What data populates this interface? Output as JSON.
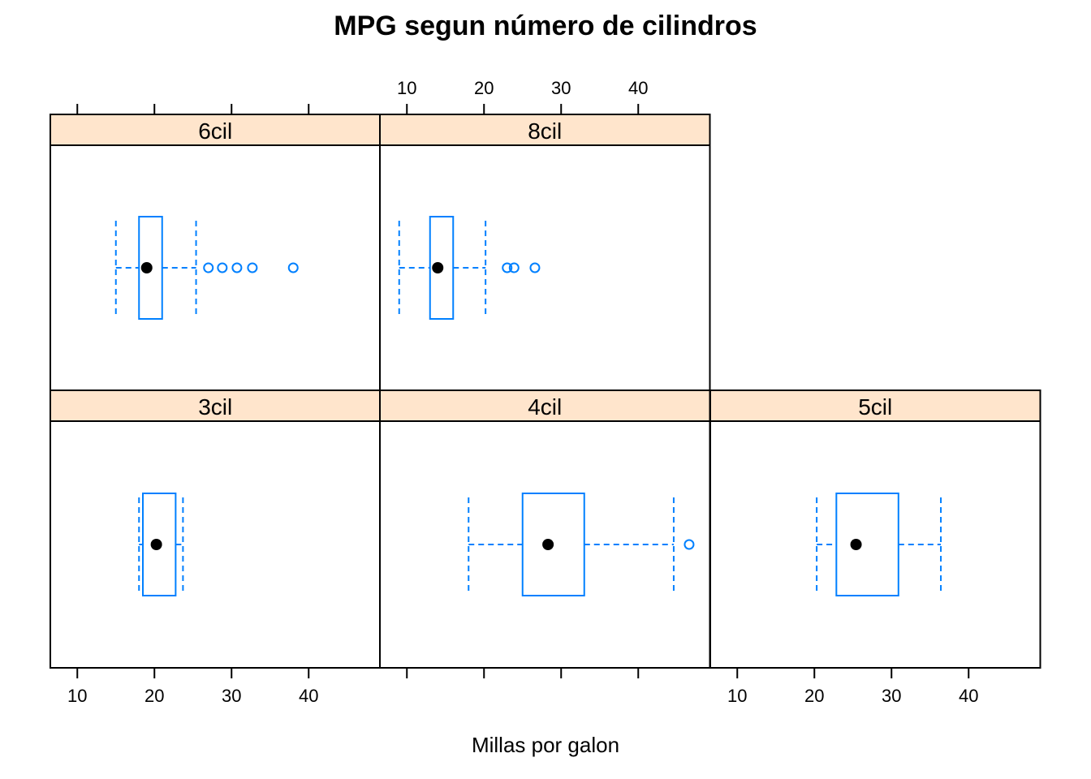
{
  "chart_data": {
    "type": "boxplot",
    "title": "MPG segun número de cilindros",
    "xlabel": "Millas por galon",
    "xlim": [
      6.5,
      49
    ],
    "xticks": [
      10,
      20,
      30,
      40
    ],
    "tick_labels": [
      "10",
      "20",
      "30",
      "40"
    ],
    "layout": "3 columns x 2 rows, panels filled bottom-left first",
    "colors": {
      "strip": "#ffe5cc",
      "box": "#0080ff",
      "median_dot": "#000000",
      "panel_border": "#000000"
    },
    "panels": [
      {
        "label": "3cil",
        "row": "bottom",
        "col": 1,
        "stats": {
          "lower_whisker": 18,
          "q1": 18.5,
          "median": 20.25,
          "q3": 22.75,
          "upper_whisker": 23.7
        },
        "outliers": []
      },
      {
        "label": "4cil",
        "row": "bottom",
        "col": 2,
        "stats": {
          "lower_whisker": 18,
          "q1": 25,
          "median": 28.3,
          "q3": 33,
          "upper_whisker": 44.6
        },
        "outliers": [
          46.6
        ]
      },
      {
        "label": "5cil",
        "row": "bottom",
        "col": 3,
        "stats": {
          "lower_whisker": 20.3,
          "q1": 22.85,
          "median": 25.4,
          "q3": 30.9,
          "upper_whisker": 36.4
        },
        "outliers": []
      },
      {
        "label": "6cil",
        "row": "top",
        "col": 1,
        "stats": {
          "lower_whisker": 15,
          "q1": 18,
          "median": 19,
          "q3": 21,
          "upper_whisker": 25.4
        },
        "outliers": [
          27,
          28.8,
          30.7,
          32.7,
          38
        ]
      },
      {
        "label": "8cil",
        "row": "top",
        "col": 2,
        "stats": {
          "lower_whisker": 9,
          "q1": 13,
          "median": 14,
          "q3": 16,
          "upper_whisker": 20.2
        },
        "outliers": [
          23,
          23.9,
          26.6
        ]
      }
    ]
  }
}
